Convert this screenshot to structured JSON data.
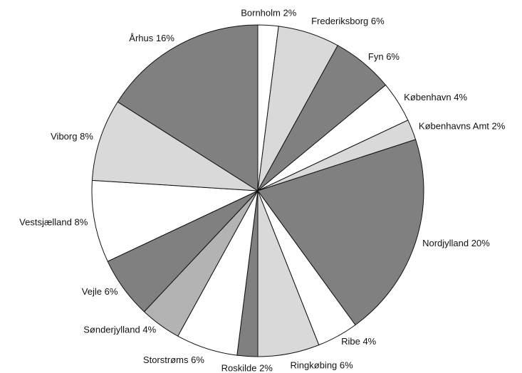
{
  "chart_data": {
    "type": "pie",
    "categories": [
      "Bornholm",
      "Frederiksborg",
      "Fyn",
      "København",
      "Københavns Amt",
      "Nordjylland",
      "Ribe",
      "Ringkøbing",
      "Roskilde",
      "Storstrøms",
      "Sønderjylland",
      "Vejle",
      "Vestsjælland",
      "Viborg",
      "Århus"
    ],
    "values": [
      2,
      6,
      6,
      4,
      2,
      20,
      4,
      6,
      2,
      6,
      4,
      6,
      8,
      8,
      16
    ],
    "value_labels": [
      "2%",
      "6%",
      "6%",
      "4%",
      "2%",
      "20%",
      "4%",
      "6%",
      "2%",
      "6%",
      "4%",
      "6%",
      "8%",
      "8%",
      "16%"
    ],
    "colors": [
      "#ffffff",
      "#d9d9d9",
      "#808080",
      "#ffffff",
      "#d9d9d9",
      "#808080",
      "#ffffff",
      "#d9d9d9",
      "#808080",
      "#ffffff",
      "#b3b3b3",
      "#808080",
      "#ffffff",
      "#d9d9d9",
      "#808080"
    ]
  }
}
